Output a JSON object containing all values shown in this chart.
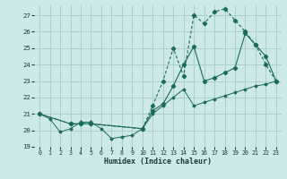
{
  "xlabel": "Humidex (Indice chaleur)",
  "xlim": [
    -0.5,
    23.5
  ],
  "ylim": [
    19,
    27.6
  ],
  "yticks": [
    19,
    20,
    21,
    22,
    23,
    24,
    25,
    26,
    27
  ],
  "xticks": [
    0,
    1,
    2,
    3,
    4,
    5,
    6,
    7,
    8,
    9,
    10,
    11,
    12,
    13,
    14,
    15,
    16,
    17,
    18,
    19,
    20,
    21,
    22,
    23
  ],
  "bg_color": "#cce8e8",
  "grid_color": "#aacfcf",
  "line_color": "#1a6b5a",
  "line1_x": [
    0,
    1,
    2,
    3,
    4,
    5,
    6,
    7,
    8,
    9,
    10,
    11,
    12,
    13,
    14,
    15,
    16,
    17,
    18,
    19,
    20,
    21,
    22,
    23
  ],
  "line1_y": [
    21.0,
    20.7,
    19.9,
    20.1,
    20.5,
    20.5,
    20.1,
    19.5,
    19.6,
    19.7,
    20.1,
    21.0,
    21.5,
    22.0,
    22.5,
    21.5,
    21.7,
    21.9,
    22.1,
    22.3,
    22.5,
    22.7,
    22.8,
    23.0
  ],
  "line2_x": [
    0,
    3,
    4,
    5,
    10,
    11,
    12,
    13,
    14,
    15,
    16,
    17,
    18,
    19,
    20,
    21,
    22,
    23
  ],
  "line2_y": [
    21.0,
    20.4,
    20.4,
    20.4,
    20.1,
    21.5,
    23.0,
    25.0,
    23.3,
    27.0,
    26.5,
    27.2,
    27.4,
    26.7,
    26.0,
    25.2,
    24.0,
    23.0
  ],
  "line3_x": [
    0,
    3,
    4,
    5,
    10,
    11,
    12,
    13,
    14,
    15,
    16,
    17,
    18,
    19,
    20,
    21,
    22,
    23
  ],
  "line3_y": [
    21.0,
    20.4,
    20.4,
    20.4,
    20.1,
    21.2,
    21.6,
    22.7,
    24.0,
    25.1,
    23.0,
    23.2,
    23.5,
    23.8,
    25.9,
    25.2,
    24.5,
    23.0
  ]
}
